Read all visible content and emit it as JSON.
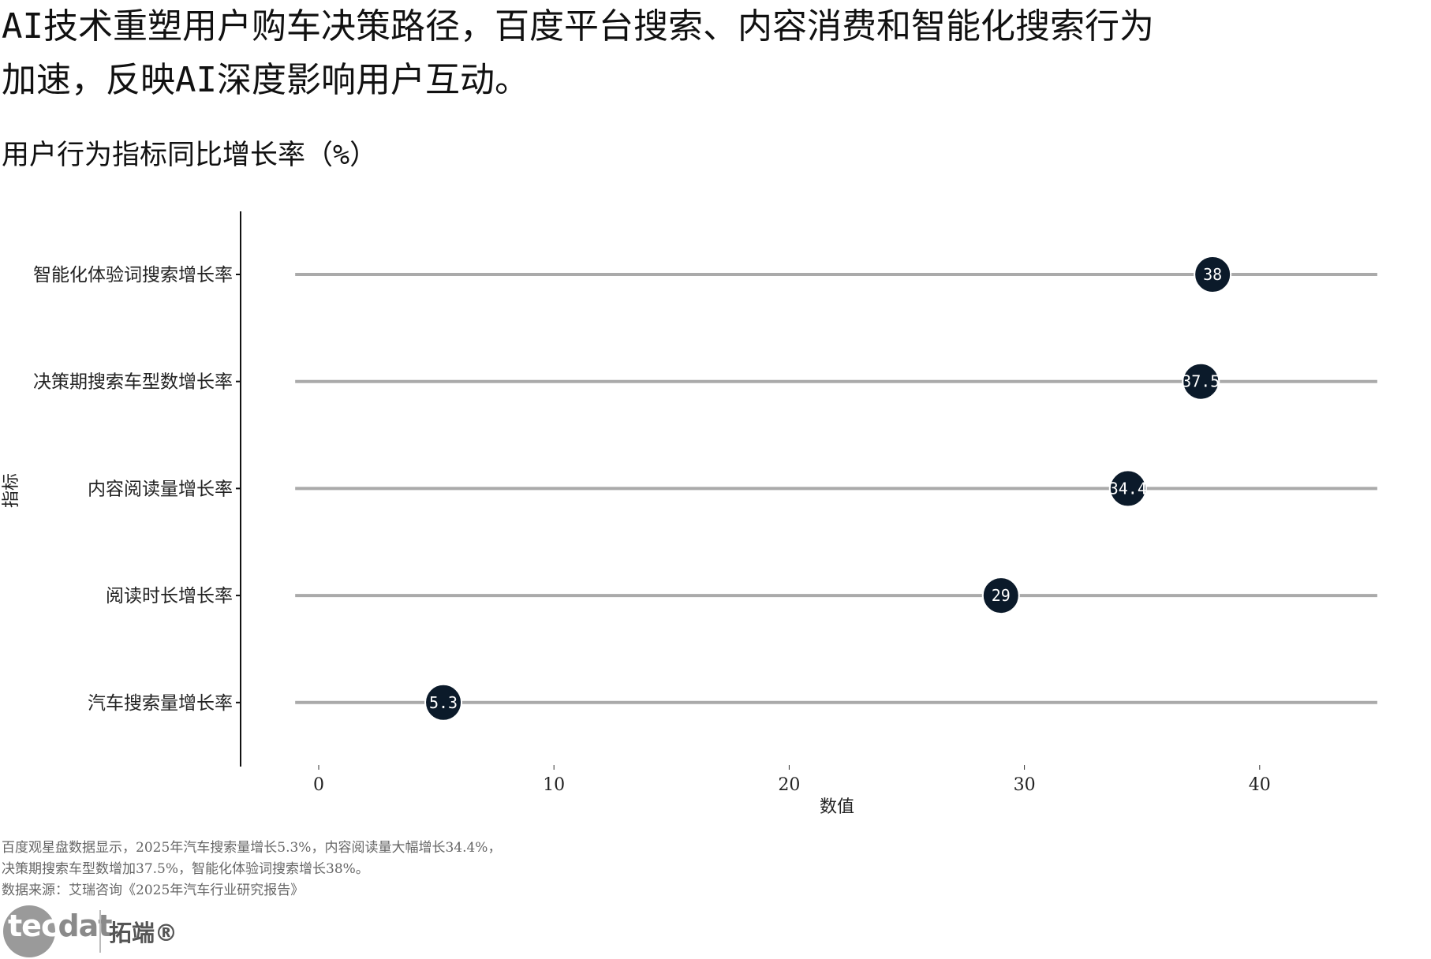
{
  "headline_line1": "AI技术重塑用户购车决策路径，百度平台搜索、内容消费和智能化搜索行为",
  "headline_line2": "加速，反映AI深度影响用户互动。",
  "subtitle": "用户行为指标同比增长率（%）",
  "chart_data": {
    "type": "dot",
    "categories": [
      "智能化体验词搜索增长率",
      "决策期搜索车型数增长率",
      "内容阅读量增长率",
      "阅读时长增长率",
      "汽车搜索量增长率"
    ],
    "values": [
      38,
      37.5,
      34.4,
      29,
      5.3
    ],
    "value_labels": [
      "38",
      "37.5",
      "34.4",
      "29",
      "5.3"
    ],
    "xlabel": "数值",
    "ylabel": "指标",
    "xlim": [
      -1,
      45
    ],
    "xticks": [
      0,
      10,
      20,
      30,
      40
    ],
    "grid": false,
    "colors": {
      "dot": "#0b1a2a",
      "line": "#aaaaaa",
      "axis": "#111111"
    }
  },
  "notes": {
    "line1": "百度观星盘数据显示，2025年汽车搜索量增长5.3%，内容阅读量大幅增长34.4%，",
    "line2": "决策期搜索车型数增加37.5%，智能化体验词搜索增长38%。",
    "source": "数据来源：艾瑞咨询《2025年汽车行业研究报告》"
  },
  "logo": {
    "word_a": "tec",
    "word_b": "dat",
    "cn": "拓端®"
  }
}
